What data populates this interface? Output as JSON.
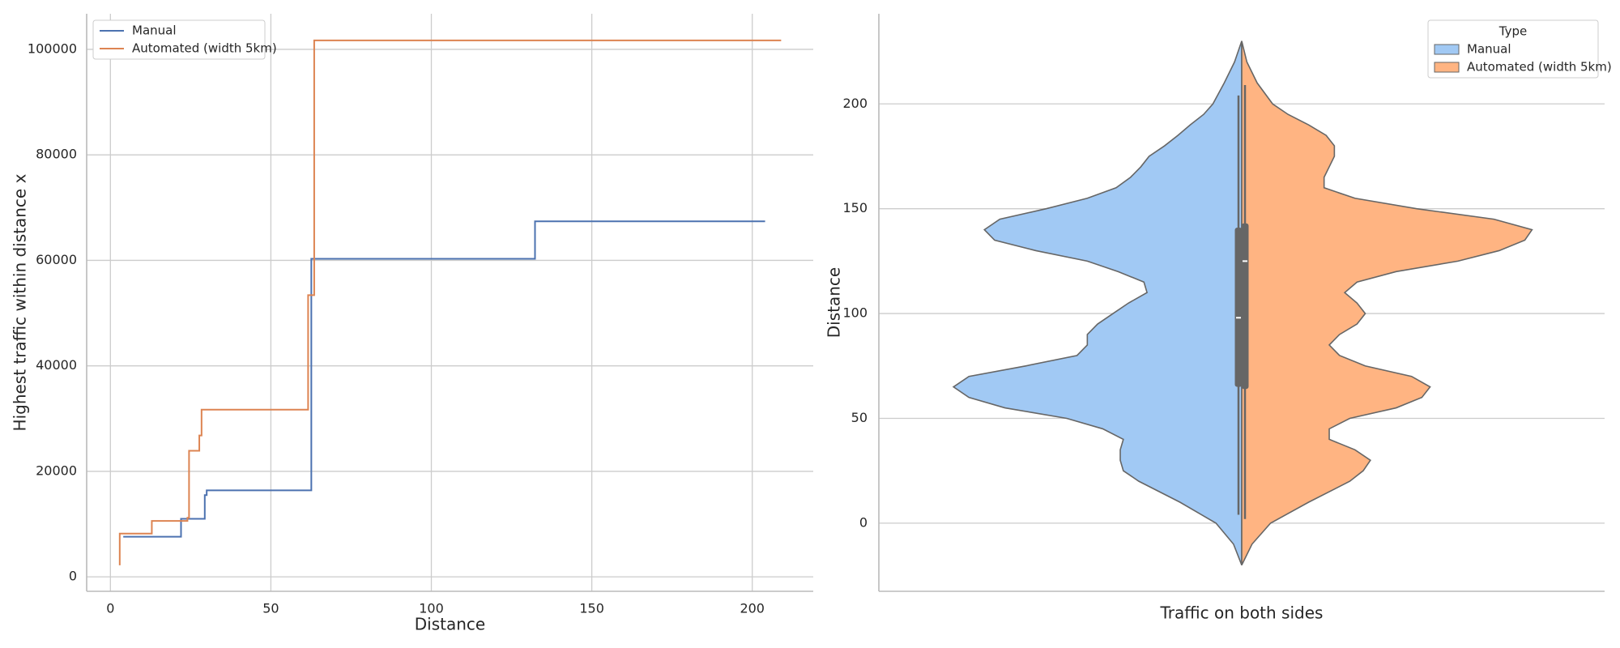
{
  "chart_data": [
    {
      "type": "line",
      "drawstyle": "steps-post",
      "xlabel": "Distance",
      "ylabel": "Highest traffic within distance x",
      "xlim": [
        -7.4,
        219
      ],
      "ylim": [
        -2740,
        106750
      ],
      "xticks": [
        0,
        50,
        100,
        150,
        200
      ],
      "yticks": [
        0,
        20000,
        40000,
        60000,
        80000,
        100000
      ],
      "grid": true,
      "legend": "upper left",
      "series": [
        {
          "name": "Manual",
          "color": "#4c72b0",
          "x": [
            4,
            22,
            29.4,
            30,
            62.6,
            132.3,
            204
          ],
          "values": [
            7600,
            11000,
            15500,
            16400,
            60300,
            67400,
            67400
          ]
        },
        {
          "name": "Automated (width 5km)",
          "color": "#dd8452",
          "x": [
            2.9,
            2.9,
            12.9,
            24,
            24.5,
            27.7,
            28.4,
            61.6,
            63.5,
            209
          ],
          "values": [
            2200,
            8200,
            10600,
            11200,
            23900,
            26800,
            31700,
            53400,
            101700,
            101700
          ]
        }
      ]
    },
    {
      "type": "violin",
      "xlabel": "Traffic on both sides",
      "ylabel": "Distance",
      "ylim": [
        -32.5,
        243
      ],
      "yticks": [
        0,
        50,
        100,
        150,
        200
      ],
      "grid": true,
      "legend": "upper right",
      "legend_title": "Type",
      "edge_color": "#666666",
      "grid_values": [
        -20,
        -10,
        0,
        10,
        20,
        25,
        30,
        35,
        40,
        45,
        50,
        55,
        60,
        65,
        70,
        75,
        80,
        85,
        90,
        95,
        100,
        105,
        110,
        115,
        120,
        125,
        130,
        135,
        140,
        145,
        150,
        155,
        160,
        165,
        170,
        175,
        180,
        185,
        190,
        195,
        200,
        210,
        220,
        230
      ],
      "series": [
        {
          "name": "Manual",
          "color": "#a1c9f4",
          "density": [
            0,
            8,
            25,
            60,
            100,
            115,
            118,
            118,
            115,
            135,
            170,
            230,
            265,
            280,
            265,
            210,
            160,
            150,
            150,
            140,
            125,
            110,
            92,
            95,
            120,
            150,
            200,
            240,
            250,
            235,
            190,
            150,
            122,
            108,
            98,
            90,
            75,
            62,
            50,
            37,
            28,
            17,
            7,
            0
          ],
          "whisker_low": 4,
          "q1": 65,
          "median": 98,
          "q3": 141,
          "whisker_high": 204
        },
        {
          "name": "Automated (width 5km)",
          "color": "#ffb482",
          "density": [
            0,
            10,
            28,
            65,
            105,
            118,
            125,
            110,
            85,
            85,
            105,
            150,
            175,
            183,
            165,
            120,
            95,
            85,
            95,
            112,
            120,
            112,
            100,
            112,
            150,
            210,
            250,
            275,
            282,
            245,
            170,
            110,
            80,
            80,
            85,
            90,
            90,
            82,
            65,
            45,
            30,
            15,
            5,
            0
          ],
          "whisker_low": 2,
          "q1": 64,
          "median": 125,
          "q3": 143,
          "whisker_high": 209
        }
      ]
    }
  ]
}
